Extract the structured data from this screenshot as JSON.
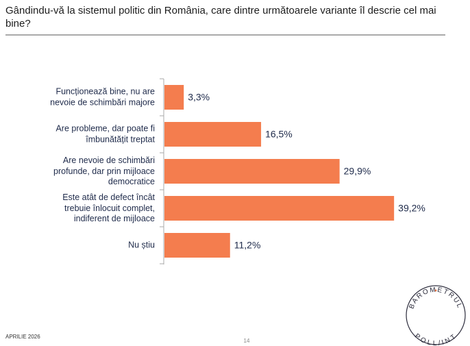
{
  "chart_data": {
    "type": "bar",
    "orientation": "horizontal",
    "title": "Gândindu-vă la sistemul politic din România, care dintre următoarele variante îl descrie cel mai bine?",
    "categories": [
      "Funcționează bine, nu are\nnevoie de schimbări majore",
      "Are probleme, dar poate fi\nîmbunătățit treptat",
      "Are nevoie de schimbări\nprofunde, dar prin mijloace\ndemocratice",
      "Este atât de defect încât\ntrebuie înlocuit complet,\nindiferent de mijloace",
      "Nu știu"
    ],
    "values": [
      3.3,
      16.5,
      29.9,
      39.2,
      11.2
    ],
    "value_labels": [
      "3,3%",
      "16,5%",
      "29,9%",
      "39,2%",
      "11,2%"
    ],
    "color": "#f47d4e"
  },
  "footer": {
    "date": "APRILIE 2026",
    "page": "14"
  },
  "logo": {
    "top": "BAROMETRUL",
    "bottom": "POLL/INT"
  }
}
